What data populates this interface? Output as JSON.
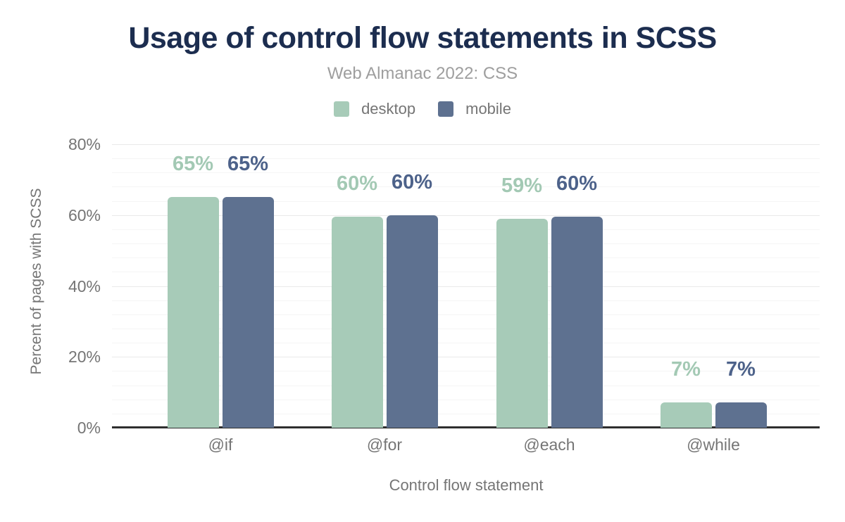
{
  "chart_data": {
    "type": "bar",
    "title": "Usage of control flow statements in SCSS",
    "subtitle": "Web Almanac 2022: CSS",
    "xlabel": "Control flow statement",
    "ylabel": "Percent of pages with SCSS",
    "categories": [
      "@if",
      "@for",
      "@each",
      "@while"
    ],
    "series": [
      {
        "name": "desktop",
        "values": [
          65,
          60,
          59,
          7
        ],
        "labels": [
          "65%",
          "60%",
          "59%",
          "7%"
        ],
        "bar_heights_pct": [
          65.1,
          59.6,
          59.0,
          7.1
        ],
        "color": "#a7cbb8",
        "label_color": "#a3c9b4"
      },
      {
        "name": "mobile",
        "values": [
          65,
          60,
          60,
          7
        ],
        "labels": [
          "65%",
          "60%",
          "60%",
          "7%"
        ],
        "bar_heights_pct": [
          65.1,
          59.9,
          59.5,
          7.1
        ],
        "color": "#5e7190",
        "label_color": "#4d628a"
      }
    ],
    "ylim": [
      0,
      80
    ],
    "ytick_values": [
      0,
      20,
      40,
      60,
      80
    ],
    "ytick_labels": [
      "0%",
      "20%",
      "40%",
      "60%",
      "80%"
    ],
    "grid": "horizontal, major every 20%, minor every 4%",
    "legend_position": "top-center"
  },
  "colors": {
    "title": "#1c2d4f",
    "subtitle": "#9e9e9e",
    "axis_text": "#757575",
    "gridline_major": "#e9e9e9",
    "gridline_minor": "#f5f5f5",
    "axis_line": "#2e2e2e",
    "background": "#ffffff"
  }
}
